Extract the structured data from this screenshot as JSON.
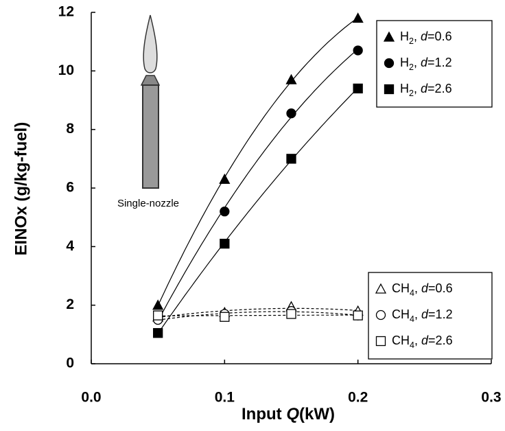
{
  "chart_data": {
    "type": "scatter",
    "x_label": "Input Q(kW)",
    "y_label": "EINOx (g/kg-fuel)",
    "annotation": "Single-nozzle",
    "xlim": [
      0,
      0.3
    ],
    "xticks": [
      {
        "value": 0,
        "label": "0.0"
      },
      0.1,
      0.2,
      0.3
    ],
    "ylim": [
      0,
      12
    ],
    "yticks": [
      0,
      2,
      4,
      6,
      8,
      10,
      12
    ],
    "x": [
      0.05,
      0.1,
      0.15,
      0.2
    ],
    "series": [
      {
        "name": "H2, d=0.6",
        "marker": "triangle",
        "filled": true,
        "linestyle": "solid",
        "color": "#000000",
        "values": [
          2.0,
          6.3,
          9.7,
          11.8
        ]
      },
      {
        "name": "H2, d=1.2",
        "marker": "circle",
        "filled": true,
        "linestyle": "solid",
        "color": "#000000",
        "values": [
          1.5,
          5.2,
          8.55,
          10.7
        ]
      },
      {
        "name": "H2, d=2.6",
        "marker": "square",
        "filled": true,
        "linestyle": "solid",
        "color": "#000000",
        "values": [
          1.05,
          4.1,
          7.0,
          9.4
        ]
      },
      {
        "name": "CH4, d=0.6",
        "marker": "triangle",
        "filled": false,
        "linestyle": "dashed",
        "color": "#000000",
        "values": [
          1.6,
          1.75,
          1.95,
          1.8
        ]
      },
      {
        "name": "CH4, d=1.2",
        "marker": "circle",
        "filled": false,
        "linestyle": "dashed",
        "color": "#000000",
        "values": [
          1.5,
          1.7,
          1.8,
          1.65
        ]
      },
      {
        "name": "CH4, d=2.6",
        "marker": "square",
        "filled": false,
        "linestyle": "dashed",
        "color": "#000000",
        "values": [
          1.65,
          1.6,
          1.7,
          1.65
        ]
      }
    ]
  }
}
